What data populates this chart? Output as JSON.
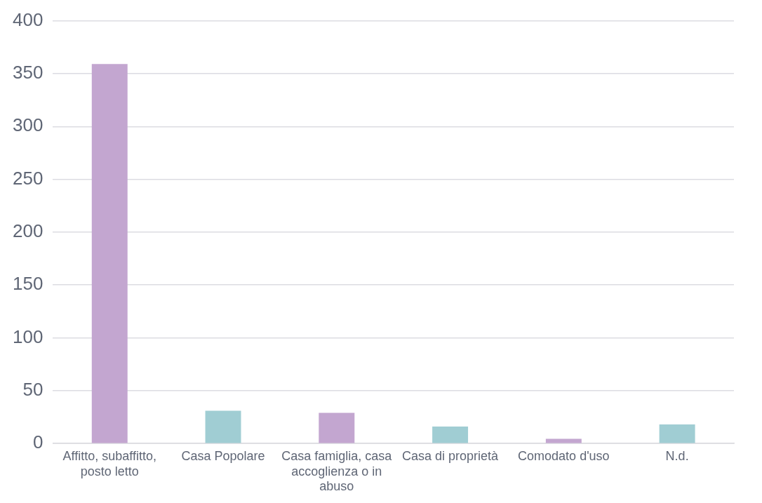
{
  "chart_data": {
    "type": "bar",
    "categories": [
      "Affitto, subaffitto, posto letto",
      "Casa Popolare",
      "Casa famiglia, casa accoglienza o in abuso",
      "Casa di proprietà",
      "Comodato d'uso",
      "N.d."
    ],
    "values": [
      359,
      31,
      29,
      16,
      4.5,
      18
    ],
    "colors": [
      "#c3a6d0",
      "#a0cdd3",
      "#c3a6d0",
      "#a0cdd3",
      "#c3a6d0",
      "#a0cdd3"
    ],
    "ylim": [
      0,
      400
    ],
    "yticks": [
      0,
      50,
      100,
      150,
      200,
      250,
      300,
      350,
      400
    ],
    "grid": "y",
    "legend": false
  }
}
